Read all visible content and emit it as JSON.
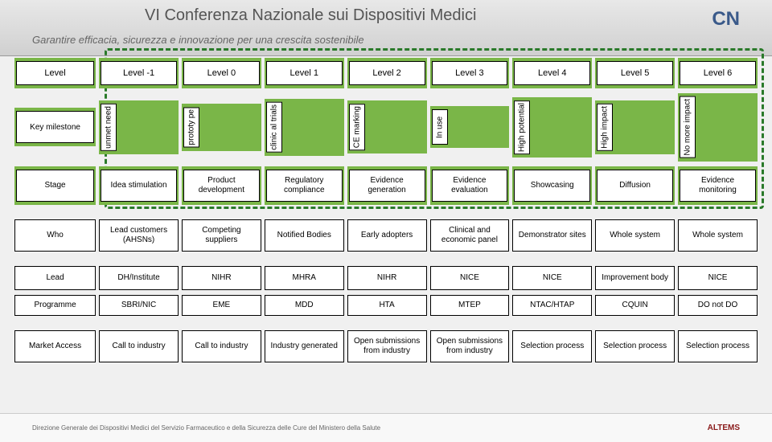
{
  "bg": {
    "title": "VI Conferenza Nazionale sui Dispositivi Medici",
    "subtitle": "Garantire efficacia, sicurezza e innovazione per una crescita sostenibile",
    "footer_left": "Direzione Generale dei Dispositivi Medici del Servizio Farmaceutico e della Sicurezza delle Cure del Ministero della Salute",
    "footer_right": "ALTEMS",
    "logo": "CN"
  },
  "colors": {
    "green_band": "#7ab648",
    "dash_border": "#2a7a2a",
    "cell_bg": "#ffffff",
    "cell_border": "#000000"
  },
  "rows": {
    "level": {
      "label": "Level",
      "cells": [
        "Level -1",
        "Level 0",
        "Level 1",
        "Level 2",
        "Level 3",
        "Level 4",
        "Level 5",
        "Level 6"
      ]
    },
    "milestone": {
      "label": "Key milestone",
      "cells": [
        "unmet need",
        "prototy pe",
        "clinic al trials",
        "CE marking",
        "In use",
        "High potential",
        "High impact",
        "No more impact"
      ]
    },
    "stage": {
      "label": "Stage",
      "cells": [
        "Idea stimulation",
        "Product development",
        "Regulatory compliance",
        "Evidence generation",
        "Evidence evaluation",
        "Showcasing",
        "Diffusion",
        "Evidence monitoring"
      ]
    },
    "who": {
      "label": "Who",
      "cells": [
        "Lead customers (AHSNs)",
        "Competing suppliers",
        "Notified Bodies",
        "Early adopters",
        "Clinical and economic panel",
        "Demonstrator sites",
        "Whole system",
        "Whole system"
      ]
    },
    "lead": {
      "label": "Lead",
      "cells": [
        "DH/Institute",
        "NIHR",
        "MHRA",
        "NIHR",
        "NICE",
        "NICE",
        "Improvement body",
        "NICE"
      ]
    },
    "programme": {
      "label": "Programme",
      "cells": [
        "SBRI/NIC",
        "EME",
        "MDD",
        "HTA",
        "MTEP",
        "NTAC/HTAP",
        "CQUIN",
        "DO not DO"
      ]
    },
    "market": {
      "label": "Market Access",
      "cells": [
        "Call to industry",
        "Call to industry",
        "Industry generated",
        "Open submissions from industry",
        "Open submissions from industry",
        "Selection process",
        "Selection process",
        "Selection process"
      ]
    }
  }
}
